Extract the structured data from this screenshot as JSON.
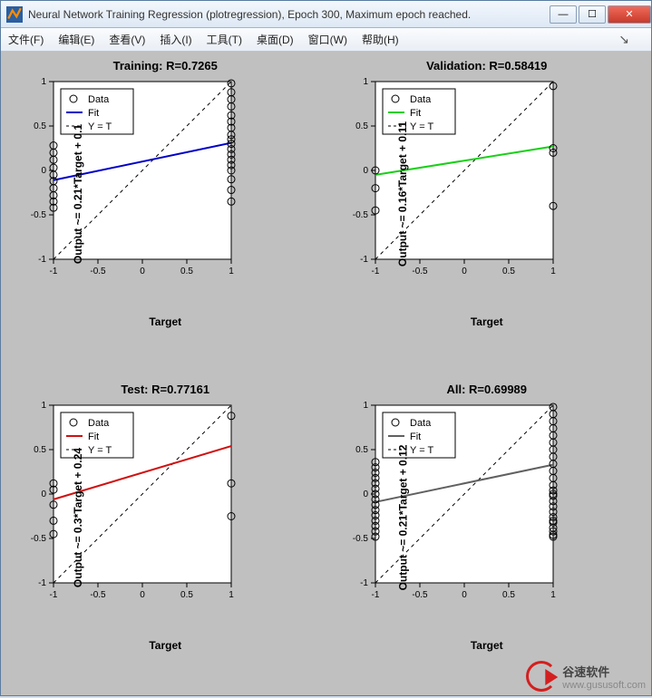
{
  "window": {
    "title": "Neural Network Training Regression (plotregression), Epoch 300, Maximum epoch reached."
  },
  "menu": {
    "file": "文件(F)",
    "edit": "编辑(E)",
    "view": "查看(V)",
    "insert": "插入(I)",
    "tools": "工具(T)",
    "desktop": "桌面(D)",
    "window_": "窗口(W)",
    "help": "帮助(H)"
  },
  "panels": [
    {
      "id": "train",
      "title": "Training: R=0.7265",
      "ylabel": "Output ~= 0.21*Target + 0.1",
      "xlabel": "Target",
      "fit_color": "#0000c8",
      "slope": 0.21,
      "intercept": 0.1,
      "data_x": [
        -1,
        -1,
        -1,
        -1,
        -1,
        -1,
        -1,
        -1,
        -1,
        -1,
        1,
        1,
        1,
        1,
        1,
        1,
        1,
        1,
        1,
        1,
        1,
        1,
        1,
        1,
        1,
        1,
        1,
        1
      ],
      "data_y": [
        -0.42,
        -0.35,
        -0.28,
        -0.2,
        -0.12,
        -0.05,
        0.03,
        0.12,
        0.2,
        0.28,
        0.98,
        0.88,
        0.8,
        0.72,
        0.62,
        0.55,
        0.48,
        0.4,
        0.35,
        0.3,
        0.24,
        0.18,
        0.12,
        0.06,
        0.0,
        -0.1,
        -0.22,
        -0.35
      ],
      "xticks": [
        -1,
        -0.5,
        0,
        0.5,
        1
      ],
      "yticks": [
        -1,
        -0.5,
        0,
        0.5,
        1
      ]
    },
    {
      "id": "val",
      "title": "Validation: R=0.58419",
      "ylabel": "Output ~= 0.16*Target + 0.11",
      "xlabel": "Target",
      "fit_color": "#18d018",
      "slope": 0.16,
      "intercept": 0.11,
      "data_x": [
        -1,
        -1,
        -1,
        1,
        1,
        1,
        1
      ],
      "data_y": [
        -0.45,
        -0.2,
        0.0,
        0.95,
        0.25,
        0.2,
        -0.4
      ],
      "xticks": [
        -1,
        -0.5,
        0,
        0.5,
        1
      ],
      "yticks": [
        -1,
        -0.5,
        0,
        0.5,
        1
      ]
    },
    {
      "id": "test",
      "title": "Test: R=0.77161",
      "ylabel": "Output ~= 0.3*Target + 0.24",
      "xlabel": "Target",
      "fit_color": "#d01010",
      "slope": 0.3,
      "intercept": 0.24,
      "data_x": [
        -1,
        -1,
        -1,
        -1,
        -1,
        1,
        1,
        1
      ],
      "data_y": [
        -0.45,
        -0.3,
        -0.12,
        0.05,
        0.12,
        0.88,
        0.12,
        -0.25
      ],
      "xticks": [
        -1,
        -0.5,
        0,
        0.5,
        1
      ],
      "yticks": [
        -1,
        -0.5,
        0,
        0.5,
        1
      ]
    },
    {
      "id": "all",
      "title": "All: R=0.69989",
      "ylabel": "Output ~= 0.21*Target + 0.12",
      "xlabel": "Target",
      "fit_color": "#606060",
      "slope": 0.21,
      "intercept": 0.12,
      "data_x": [
        -1,
        -1,
        -1,
        -1,
        -1,
        -1,
        -1,
        -1,
        -1,
        -1,
        -1,
        -1,
        -1,
        -1,
        -1,
        1,
        1,
        1,
        1,
        1,
        1,
        1,
        1,
        1,
        1,
        1,
        1,
        1,
        1,
        1,
        1,
        1,
        1,
        1,
        1,
        1,
        1,
        1,
        1,
        1
      ],
      "data_y": [
        -0.48,
        -0.42,
        -0.36,
        -0.3,
        -0.24,
        -0.18,
        -0.12,
        -0.06,
        0.0,
        0.06,
        0.12,
        0.18,
        0.24,
        0.3,
        0.36,
        0.98,
        0.9,
        0.82,
        0.74,
        0.66,
        0.58,
        0.5,
        0.42,
        0.34,
        0.26,
        0.18,
        0.1,
        0.04,
        -0.02,
        -0.08,
        -0.14,
        -0.2,
        -0.26,
        -0.32,
        -0.38,
        -0.42,
        -0.46,
        -0.48,
        -0.3,
        0.0
      ],
      "xticks": [
        -1,
        -0.5,
        0,
        0.5,
        1
      ],
      "yticks": [
        -1,
        -0.5,
        0,
        0.5,
        1
      ]
    }
  ],
  "legend": {
    "data": "Data",
    "fit": "Fit",
    "yt": "Y = T"
  },
  "axis": {
    "xlim": [
      -1,
      1
    ],
    "ylim": [
      -1,
      1
    ],
    "bg": "#ffffff",
    "border": "#000000",
    "tick_font": 10,
    "marker_radius": 4,
    "dash": "4,4"
  },
  "watermark": {
    "name": "谷速软件",
    "url": "www.gususoft.com"
  }
}
